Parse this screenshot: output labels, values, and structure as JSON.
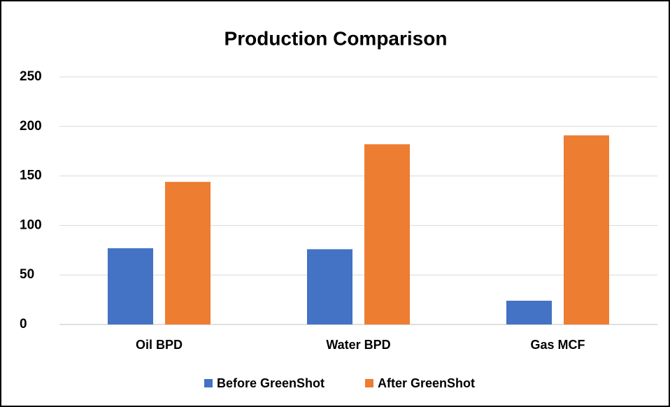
{
  "chart_data": {
    "type": "bar",
    "title": "Production Comparison",
    "categories": [
      "Oil BPD",
      "Water BPD",
      "Gas MCF"
    ],
    "series": [
      {
        "name": "Before GreenShot",
        "color": "#4472c4",
        "values": [
          77,
          76,
          24
        ]
      },
      {
        "name": "After GreenShot",
        "color": "#ed7d31",
        "values": [
          144,
          182,
          191
        ]
      }
    ],
    "ylim": [
      0,
      250
    ],
    "yticks": [
      0,
      50,
      100,
      150,
      200,
      250
    ],
    "grid": true,
    "legend": "bottom"
  }
}
